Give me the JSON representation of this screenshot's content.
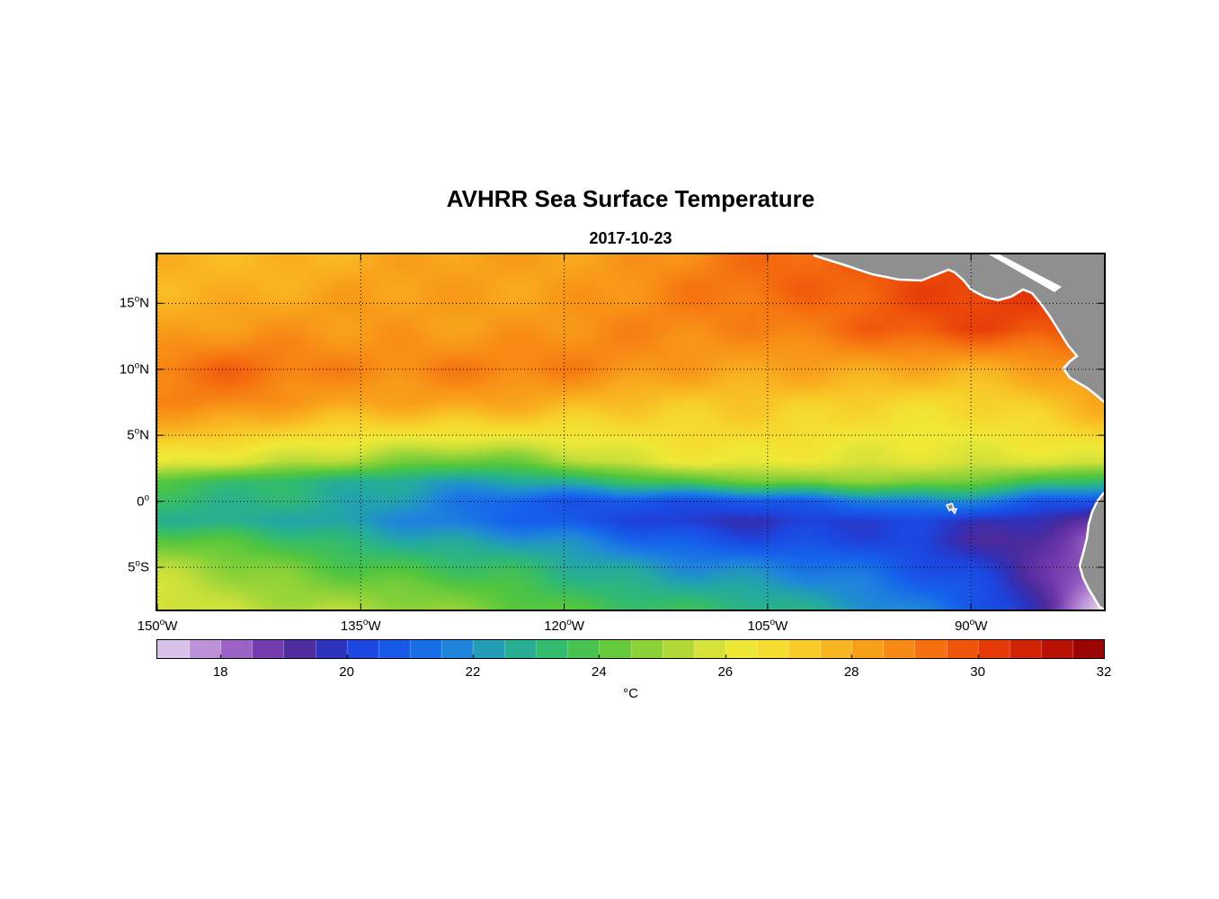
{
  "chart_data": {
    "type": "heatmap",
    "title": "AVHRR Sea Surface Temperature",
    "date": "2017-10-23",
    "units": "°C",
    "axes": {
      "lon_range": [
        -150,
        -80.2
      ],
      "lat_range": [
        18.7,
        -8.2
      ],
      "lon_ticks": [
        {
          "value": -150,
          "num": "150",
          "dir": "W"
        },
        {
          "value": -135,
          "num": "135",
          "dir": "W"
        },
        {
          "value": -120,
          "num": "120",
          "dir": "W"
        },
        {
          "value": -105,
          "num": "105",
          "dir": "W"
        },
        {
          "value": -90,
          "num": "90",
          "dir": "W"
        }
      ],
      "lat_ticks": [
        {
          "value": 15,
          "num": "15",
          "dir": "N"
        },
        {
          "value": 10,
          "num": "10",
          "dir": "N"
        },
        {
          "value": 5,
          "num": "5",
          "dir": "N"
        },
        {
          "value": 0,
          "num": "0",
          "dir": ""
        },
        {
          "value": -5,
          "num": "5",
          "dir": "S"
        }
      ],
      "grid_style": "dotted"
    },
    "colorbar": {
      "range": [
        17,
        32
      ],
      "step": 0.5,
      "ticks": [
        18,
        20,
        22,
        24,
        26,
        28,
        30,
        32
      ],
      "label": "°C"
    },
    "colormap": [
      [
        17.0,
        "#e6d9ef"
      ],
      [
        17.6,
        "#c5a1dd"
      ],
      [
        18.2,
        "#9d66c6"
      ],
      [
        18.8,
        "#6f37ab"
      ],
      [
        19.3,
        "#4b2b9e"
      ],
      [
        19.7,
        "#3030b8"
      ],
      [
        20.2,
        "#1c46e0"
      ],
      [
        21.0,
        "#1563ec"
      ],
      [
        21.8,
        "#1f87da"
      ],
      [
        22.5,
        "#23a8a4"
      ],
      [
        23.2,
        "#31ba72"
      ],
      [
        24.0,
        "#52c63e"
      ],
      [
        24.8,
        "#8ed238"
      ],
      [
        25.6,
        "#cce03a"
      ],
      [
        26.3,
        "#f0e936"
      ],
      [
        27.0,
        "#f7d62c"
      ],
      [
        27.8,
        "#f9b220"
      ],
      [
        28.6,
        "#f89116"
      ],
      [
        29.4,
        "#f4690e"
      ],
      [
        30.2,
        "#e73b08"
      ],
      [
        31.0,
        "#c81806"
      ],
      [
        32.0,
        "#8c0000"
      ]
    ],
    "grid": {
      "lon_start": -150,
      "lon_step": 2.5,
      "lats": [
        19,
        16,
        13,
        10,
        7.5,
        5,
        3,
        1.5,
        0,
        -1.5,
        -3,
        -5,
        -6.5,
        -8.5
      ],
      "values": [
        [
          27.6,
          27.6,
          27.7,
          27.7,
          27.8,
          27.8,
          27.9,
          28.0,
          28.0,
          28.1,
          28.1,
          28.2,
          28.3,
          28.4,
          28.5,
          28.6,
          28.8,
          29.0,
          29.2,
          29.4,
          29.5,
          29.7,
          29.8,
          30.0,
          30.0,
          29.9,
          29.6,
          29.6,
          29.9
        ],
        [
          27.8,
          27.9,
          27.9,
          28.0,
          28.0,
          28.0,
          28.1,
          28.1,
          28.2,
          28.2,
          28.3,
          28.3,
          28.4,
          28.5,
          28.6,
          28.7,
          28.9,
          29.1,
          29.3,
          29.5,
          29.6,
          29.8,
          29.9,
          30.0,
          30.1,
          30.1,
          30.0,
          30.0,
          30.2
        ],
        [
          28.2,
          28.3,
          28.4,
          28.4,
          28.3,
          28.3,
          28.3,
          28.4,
          28.4,
          28.5,
          28.5,
          28.5,
          28.5,
          28.6,
          28.6,
          28.7,
          28.8,
          28.9,
          29.0,
          29.2,
          29.3,
          29.5,
          29.6,
          29.7,
          29.8,
          29.9,
          29.9,
          30.0,
          30.2
        ],
        [
          29.0,
          29.2,
          29.3,
          29.2,
          29.0,
          28.9,
          28.9,
          28.9,
          29.0,
          29.0,
          28.9,
          28.8,
          28.8,
          28.7,
          28.6,
          28.5,
          28.4,
          28.3,
          28.2,
          28.1,
          28.0,
          27.9,
          27.9,
          27.9,
          28.0,
          28.1,
          28.3,
          28.6,
          29.0
        ],
        [
          28.6,
          28.7,
          28.8,
          28.7,
          28.5,
          28.4,
          28.3,
          28.2,
          28.2,
          28.1,
          28.0,
          27.9,
          27.8,
          27.7,
          27.6,
          27.5,
          27.4,
          27.3,
          27.2,
          27.1,
          27.0,
          27.0,
          27.0,
          27.0,
          27.1,
          27.2,
          27.4,
          27.6,
          27.9
        ],
        [
          27.4,
          27.4,
          27.3,
          27.2,
          27.0,
          26.8,
          26.6,
          26.4,
          26.3,
          26.3,
          26.4,
          26.5,
          26.6,
          26.6,
          26.7,
          26.7,
          26.7,
          26.7,
          26.7,
          26.6,
          26.6,
          26.5,
          26.5,
          26.4,
          26.4,
          26.4,
          26.5,
          26.7,
          26.9
        ],
        [
          26.4,
          26.2,
          26.0,
          25.8,
          25.5,
          25.2,
          24.9,
          24.6,
          24.3,
          24.2,
          24.4,
          24.7,
          25.1,
          25.5,
          25.8,
          26.0,
          26.1,
          26.2,
          26.2,
          26.2,
          26.2,
          26.1,
          26.0,
          25.9,
          25.8,
          25.7,
          25.7,
          25.8,
          26.0
        ],
        [
          24.0,
          23.8,
          23.6,
          23.3,
          23.0,
          22.8,
          22.6,
          22.5,
          22.4,
          22.4,
          22.5,
          22.7,
          22.9,
          23.1,
          23.3,
          23.6,
          23.9,
          24.2,
          24.5,
          24.7,
          24.8,
          24.8,
          24.7,
          24.5,
          24.2,
          23.9,
          23.6,
          23.4,
          23.2
        ],
        [
          23.4,
          23.2,
          23.0,
          22.9,
          22.8,
          22.6,
          22.4,
          22.2,
          22.0,
          21.6,
          21.2,
          20.8,
          20.6,
          20.5,
          20.4,
          20.4,
          20.5,
          20.6,
          20.8,
          21.0,
          21.2,
          21.4,
          21.6,
          21.8,
          21.6,
          21.2,
          20.8,
          20.6,
          20.4
        ],
        [
          23.0,
          22.8,
          22.6,
          22.5,
          22.4,
          22.3,
          22.2,
          22.0,
          21.8,
          21.5,
          21.2,
          20.9,
          20.6,
          20.3,
          20.1,
          20.0,
          19.9,
          19.9,
          19.9,
          20.0,
          20.0,
          20.0,
          20.0,
          19.9,
          19.8,
          19.7,
          19.6,
          19.4,
          19.0
        ],
        [
          24.2,
          24.0,
          23.8,
          23.6,
          23.4,
          23.2,
          23.0,
          22.8,
          22.6,
          22.4,
          22.2,
          22.0,
          21.8,
          21.5,
          21.2,
          21.0,
          20.8,
          20.6,
          20.4,
          20.3,
          20.2,
          20.1,
          20.0,
          19.8,
          19.6,
          19.4,
          19.2,
          18.8,
          18.2
        ],
        [
          25.2,
          25.0,
          24.8,
          24.6,
          24.4,
          24.2,
          24.0,
          23.8,
          23.6,
          23.4,
          23.2,
          23.0,
          22.8,
          22.6,
          22.4,
          22.2,
          22.0,
          21.8,
          21.6,
          21.4,
          21.2,
          21.0,
          20.8,
          20.5,
          20.2,
          19.8,
          19.2,
          18.4,
          17.6
        ],
        [
          25.6,
          25.4,
          25.2,
          25.0,
          24.9,
          24.8,
          24.6,
          24.4,
          24.2,
          24.0,
          23.8,
          23.6,
          23.4,
          23.2,
          23.0,
          22.8,
          22.6,
          22.4,
          22.2,
          22.0,
          21.8,
          21.6,
          21.3,
          21.0,
          20.6,
          20.0,
          19.2,
          18.2,
          17.2
        ],
        [
          26.0,
          25.8,
          25.7,
          25.6,
          25.5,
          25.4,
          25.2,
          25.0,
          24.8,
          24.6,
          24.5,
          24.4,
          24.2,
          24.0,
          23.8,
          23.6,
          23.4,
          23.2,
          23.0,
          22.8,
          22.6,
          22.4,
          22.0,
          21.6,
          21.0,
          20.2,
          19.2,
          18.0,
          17.0
        ]
      ]
    },
    "land": {
      "color": "#8f8f8f",
      "coast_color": "#ffffff",
      "features": [
        {
          "name": "central-america-land",
          "kind": "polygon",
          "fill": "land",
          "points": [
            [
              730,
              0
            ],
            [
              765,
              12
            ],
            [
              795,
              22
            ],
            [
              825,
              28
            ],
            [
              850,
              29
            ],
            [
              865,
              23
            ],
            [
              880,
              17
            ],
            [
              887,
              20
            ],
            [
              897,
              29
            ],
            [
              905,
              39
            ],
            [
              920,
              47
            ],
            [
              935,
              51
            ],
            [
              950,
              47
            ],
            [
              963,
              39
            ],
            [
              973,
              43
            ],
            [
              983,
              55
            ],
            [
              993,
              69
            ],
            [
              1003,
              85
            ],
            [
              1013,
              101
            ],
            [
              1023,
              113
            ],
            [
              1015,
              119
            ],
            [
              1008,
              127
            ],
            [
              1015,
              137
            ],
            [
              1025,
              143
            ],
            [
              1035,
              149
            ],
            [
              1045,
              157
            ],
            [
              1053,
              164
            ],
            [
              1053,
              0
            ]
          ]
        },
        {
          "name": "caribbean-gap",
          "kind": "polygon",
          "fill": "white",
          "points": [
            [
              925,
              0
            ],
            [
              937,
              0
            ],
            [
              1006,
              36
            ],
            [
              998,
              42
            ]
          ]
        },
        {
          "name": "central-america-coastline",
          "kind": "polyline",
          "points": [
            [
              730,
              1
            ],
            [
              765,
              12
            ],
            [
              795,
              22
            ],
            [
              825,
              28
            ],
            [
              850,
              29
            ],
            [
              865,
              23
            ],
            [
              880,
              17
            ],
            [
              887,
              20
            ],
            [
              897,
              29
            ],
            [
              905,
              39
            ],
            [
              920,
              47
            ],
            [
              935,
              51
            ],
            [
              950,
              47
            ],
            [
              963,
              39
            ],
            [
              973,
              43
            ],
            [
              983,
              55
            ],
            [
              993,
              69
            ],
            [
              1003,
              85
            ],
            [
              1013,
              101
            ],
            [
              1023,
              113
            ],
            [
              1015,
              119
            ],
            [
              1008,
              127
            ],
            [
              1015,
              137
            ],
            [
              1025,
              143
            ],
            [
              1035,
              149
            ],
            [
              1045,
              157
            ],
            [
              1053,
              164
            ]
          ]
        },
        {
          "name": "south-america-land",
          "kind": "polygon",
          "fill": "land",
          "points": [
            [
              1053,
              265
            ],
            [
              1046,
              274
            ],
            [
              1040,
              286
            ],
            [
              1036,
              300
            ],
            [
              1034,
              316
            ],
            [
              1030,
              332
            ],
            [
              1026,
              346
            ],
            [
              1030,
              360
            ],
            [
              1036,
              372
            ],
            [
              1042,
              382
            ],
            [
              1048,
              392
            ],
            [
              1053,
              395
            ]
          ]
        },
        {
          "name": "south-america-coastline",
          "kind": "polyline",
          "points": [
            [
              1053,
              265
            ],
            [
              1046,
              274
            ],
            [
              1040,
              286
            ],
            [
              1036,
              300
            ],
            [
              1034,
              316
            ],
            [
              1030,
              332
            ],
            [
              1026,
              346
            ],
            [
              1030,
              360
            ],
            [
              1036,
              372
            ],
            [
              1042,
              382
            ],
            [
              1048,
              392
            ],
            [
              1053,
              395
            ]
          ]
        },
        {
          "name": "galapagos-island",
          "kind": "polygon",
          "fill": "land",
          "stroke": "white",
          "points": [
            [
              878,
              279
            ],
            [
              884,
              277
            ],
            [
              886,
              282
            ],
            [
              881,
              285
            ]
          ]
        },
        {
          "name": "galapagos-island",
          "kind": "polygon",
          "fill": "land",
          "stroke": "white",
          "points": [
            [
              884,
              284
            ],
            [
              889,
              283
            ],
            [
              887,
              288
            ]
          ]
        }
      ]
    }
  }
}
